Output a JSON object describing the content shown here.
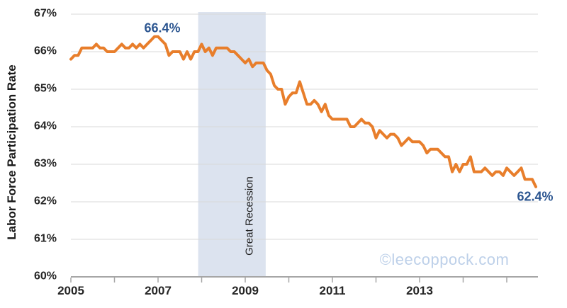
{
  "chart_data": {
    "type": "line",
    "title": "",
    "xlabel": "",
    "ylabel": "Labor Force Participation Rate",
    "ylim": [
      60,
      67
    ],
    "y_ticks": [
      "60%",
      "61%",
      "62%",
      "63%",
      "64%",
      "65%",
      "66%",
      "67%"
    ],
    "x_ticks": [
      2005,
      2006,
      2007,
      2008,
      2009,
      2010,
      2011,
      2012,
      2013,
      2014,
      2015
    ],
    "x_tick_labels": [
      "2005",
      "2007",
      "2009",
      "2011",
      "2013"
    ],
    "grid": "horizontal",
    "legend": "none",
    "line_color": "#E87E2B",
    "gridline_color": "#D9D9D9",
    "axis_color": "#A6A6A6",
    "tick_label_color": "#262626",
    "annotation_color": "#2B5590",
    "series": [
      {
        "name": "Labor Force Participation Rate",
        "frequency": "monthly",
        "start": "2005-01",
        "end": "2015-09",
        "unit": "%",
        "values": [
          65.8,
          65.9,
          65.9,
          66.1,
          66.1,
          66.1,
          66.1,
          66.2,
          66.1,
          66.1,
          66.0,
          66.0,
          66.0,
          66.1,
          66.2,
          66.1,
          66.1,
          66.2,
          66.1,
          66.2,
          66.1,
          66.2,
          66.3,
          66.4,
          66.4,
          66.3,
          66.2,
          65.9,
          66.0,
          66.0,
          66.0,
          65.8,
          66.0,
          65.8,
          66.0,
          66.0,
          66.2,
          66.0,
          66.1,
          65.9,
          66.1,
          66.1,
          66.1,
          66.1,
          66.0,
          66.0,
          65.9,
          65.8,
          65.7,
          65.8,
          65.6,
          65.7,
          65.7,
          65.7,
          65.5,
          65.4,
          65.1,
          65.0,
          65.0,
          64.6,
          64.8,
          64.9,
          64.9,
          65.2,
          64.9,
          64.6,
          64.6,
          64.7,
          64.6,
          64.4,
          64.6,
          64.3,
          64.2,
          64.2,
          64.2,
          64.2,
          64.2,
          64.0,
          64.0,
          64.1,
          64.2,
          64.1,
          64.1,
          64.0,
          63.7,
          63.9,
          63.8,
          63.7,
          63.8,
          63.8,
          63.7,
          63.5,
          63.6,
          63.7,
          63.6,
          63.6,
          63.6,
          63.5,
          63.3,
          63.4,
          63.4,
          63.4,
          63.3,
          63.2,
          63.2,
          62.8,
          63.0,
          62.8,
          63.0,
          63.0,
          63.2,
          62.8,
          62.8,
          62.8,
          62.9,
          62.8,
          62.7,
          62.8,
          62.8,
          62.7,
          62.9,
          62.8,
          62.7,
          62.8,
          62.9,
          62.6,
          62.6,
          62.6,
          62.4
        ]
      }
    ],
    "recession_band": {
      "label": "Great Recession",
      "start_year": 2007.92,
      "end_year": 2009.47,
      "color": "#DCE3EF"
    },
    "annotations": [
      {
        "text": "66.4%",
        "year": 2007.0,
        "value": 66.4,
        "placement": "above-right"
      },
      {
        "text": "62.4%",
        "year": 2015.667,
        "value": 62.4,
        "placement": "below-left"
      }
    ],
    "watermark": {
      "text": "©leecoppock.com",
      "color": "#BDD0E9"
    }
  }
}
